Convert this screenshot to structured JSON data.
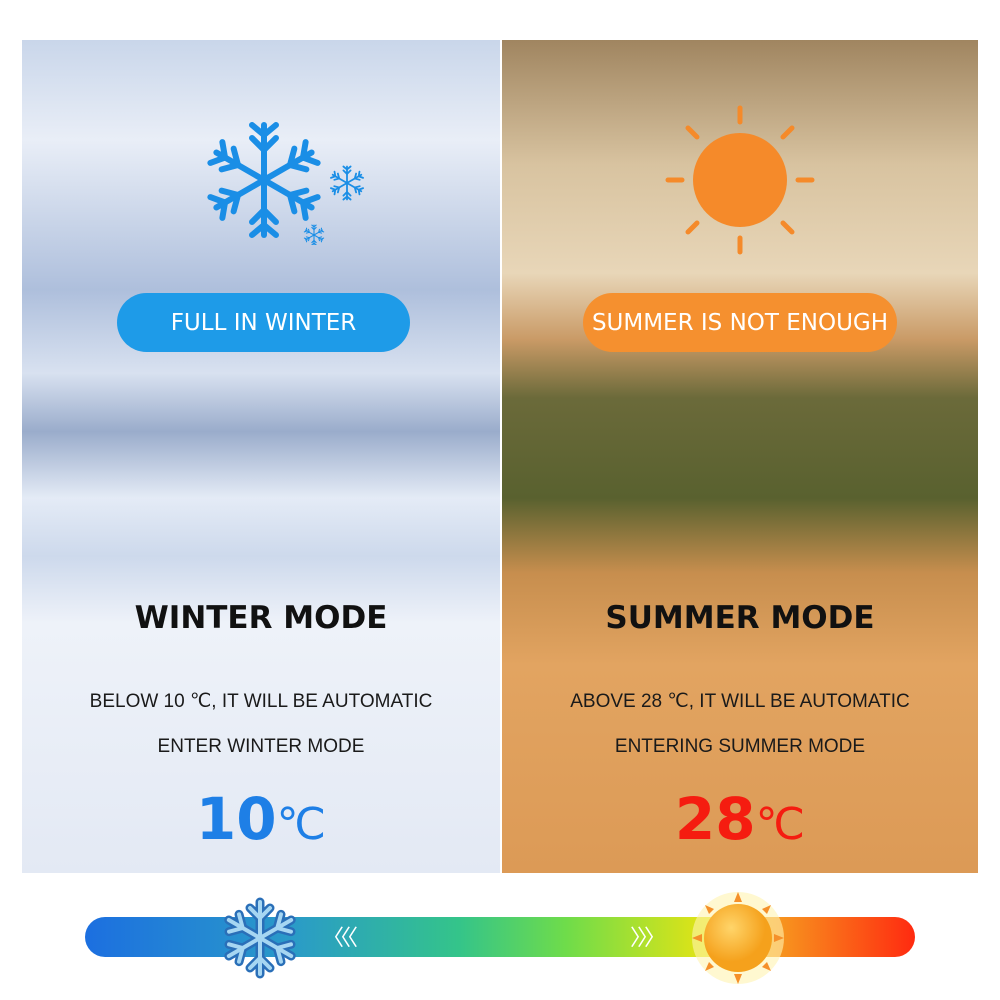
{
  "winter": {
    "badge": "FULL IN WINTER",
    "title": "WINTER MODE",
    "line1": "BELOW 10 ℃, IT WILL BE AUTOMATIC",
    "line2": "ENTER WINTER MODE",
    "temp": "10",
    "unit": "℃",
    "color": "#1e7fe6",
    "badge_color": "#1e9be8",
    "icon": "snowflake-icon"
  },
  "summer": {
    "badge": "SUMMER IS NOT ENOUGH",
    "title": "SUMMER MODE",
    "line1": "ABOVE 28 ℃, IT WILL BE AUTOMATIC",
    "line2": "ENTERING SUMMER MODE",
    "temp": "28",
    "unit": "℃",
    "color": "#f51c10",
    "badge_color": "#f5902f",
    "icon": "sun-icon"
  },
  "scale": {
    "left_arrows": "〈〈〈",
    "right_arrows": "〉〉〉"
  }
}
